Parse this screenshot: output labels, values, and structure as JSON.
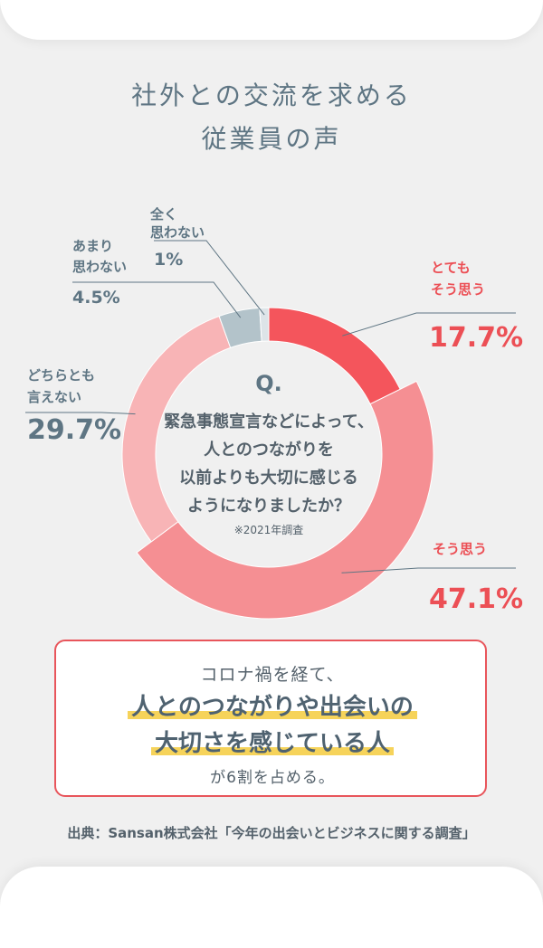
{
  "title_line1": "社外との交流を求める",
  "title_line2": "従業員の声",
  "center": {
    "q_label": "Q.",
    "question_lines": [
      "緊急事態宣言などによって、",
      "人とのつながりを",
      "以前よりも大切に感じる",
      "ようになりましたか？"
    ],
    "note": "※2021年調査"
  },
  "chart_data": {
    "type": "pie",
    "variant": "donut",
    "slices": [
      {
        "label": [
          "とても",
          "そう思う"
        ],
        "value": 17.7,
        "value_label": "17.7%",
        "color": "#f4555c",
        "label_color": "#ec4f55"
      },
      {
        "label": [
          "そう思う"
        ],
        "value": 47.1,
        "value_label": "47.1%",
        "color": "#f58f93",
        "label_color": "#ec4f55"
      },
      {
        "label": [
          "どちらとも",
          "言えない"
        ],
        "value": 29.7,
        "value_label": "29.7%",
        "color": "#f8b4b6",
        "label_color": "#5e7583"
      },
      {
        "label": [
          "あまり",
          "思わない"
        ],
        "value": 4.5,
        "value_label": "4.5%",
        "color": "#b3c3ca",
        "label_color": "#5e7583"
      },
      {
        "label": [
          "全く",
          "思わない"
        ],
        "value": 1,
        "value_label": "1%",
        "color": "#dde4e8",
        "label_color": "#5e7583"
      }
    ]
  },
  "callout": {
    "line1": "コロナ禍を経て、",
    "line2": "人とのつながりや出会いの",
    "line3": "大切さを感じている人",
    "line4": "が6割を占める。"
  },
  "source": "出典：Sansan株式会社「今年の出会いとビジネスに関する調査」",
  "colors": {
    "accent": "#e8555b",
    "text": "#5e7583",
    "highlight": "#f6d35a",
    "background": "#f0f0f0"
  }
}
